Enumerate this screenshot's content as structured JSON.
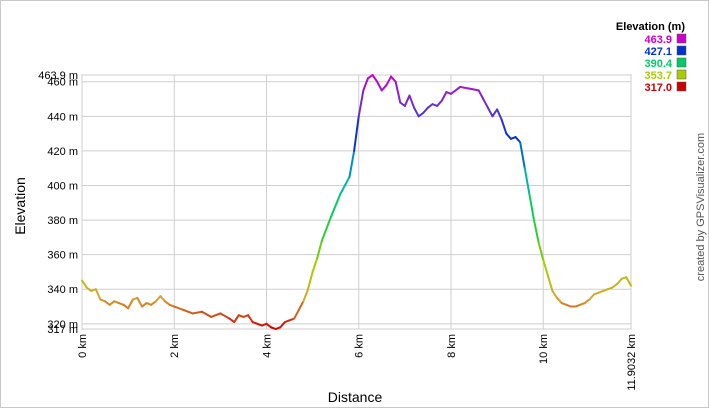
{
  "chart_data": {
    "type": "line",
    "title": "",
    "xlabel": "Distance",
    "ylabel": "Elevation",
    "xlim": [
      0,
      11.9032
    ],
    "ylim": [
      317.0,
      463.9
    ],
    "x_ticks": [
      {
        "value": 0,
        "label": "0 km"
      },
      {
        "value": 2,
        "label": "2 km"
      },
      {
        "value": 4,
        "label": "4 km"
      },
      {
        "value": 6,
        "label": "6 km"
      },
      {
        "value": 8,
        "label": "8 km"
      },
      {
        "value": 10,
        "label": "10 km"
      },
      {
        "value": 11.9032,
        "label": "11.9032 km"
      }
    ],
    "y_ticks": [
      {
        "value": 317.0,
        "label": "317 m"
      },
      {
        "value": 320,
        "label": "320 m"
      },
      {
        "value": 340,
        "label": "340 m"
      },
      {
        "value": 360,
        "label": "360 m"
      },
      {
        "value": 380,
        "label": "380 m"
      },
      {
        "value": 400,
        "label": "400 m"
      },
      {
        "value": 420,
        "label": "420 m"
      },
      {
        "value": 440,
        "label": "440 m"
      },
      {
        "value": 460,
        "label": "460 m"
      },
      {
        "value": 463.9,
        "label": "463.9 m"
      }
    ],
    "grid": true,
    "legend": {
      "title": "Elevation (m)",
      "placement": "top-right",
      "entries": [
        {
          "label": "463.9",
          "color": "#cc00cc"
        },
        {
          "label": "427.1",
          "color": "#0033cc"
        },
        {
          "label": "390.4",
          "color": "#00cc66"
        },
        {
          "label": "353.7",
          "color": "#aacc00"
        },
        {
          "label": "317.0",
          "color": "#cc0000"
        }
      ]
    },
    "color_scale": [
      {
        "value": 317.0,
        "color": "#cc0000"
      },
      {
        "value": 335.0,
        "color": "#d7a52f"
      },
      {
        "value": 353.7,
        "color": "#aacc00"
      },
      {
        "value": 372.0,
        "color": "#33cc33"
      },
      {
        "value": 390.4,
        "color": "#00cc66"
      },
      {
        "value": 408.0,
        "color": "#00aacc"
      },
      {
        "value": 427.1,
        "color": "#0033cc"
      },
      {
        "value": 445.0,
        "color": "#6633cc"
      },
      {
        "value": 463.9,
        "color": "#cc00cc"
      }
    ],
    "series": [
      {
        "x": [
          0,
          0.1,
          0.2,
          0.3,
          0.4,
          0.5,
          0.6,
          0.7,
          0.8,
          0.9,
          1.0,
          1.1,
          1.2,
          1.3,
          1.4,
          1.5,
          1.6,
          1.7,
          1.8,
          1.9,
          2.0,
          2.2,
          2.4,
          2.6,
          2.8,
          3.0,
          3.2,
          3.3,
          3.4,
          3.5,
          3.6,
          3.7,
          3.8,
          3.9,
          4.0,
          4.1,
          4.2,
          4.3,
          4.4,
          4.5,
          4.6,
          4.8,
          4.9,
          5.0,
          5.1,
          5.2,
          5.4,
          5.6,
          5.8,
          5.9,
          6.0,
          6.1,
          6.2,
          6.3,
          6.4,
          6.5,
          6.6,
          6.7,
          6.8,
          6.9,
          7.0,
          7.1,
          7.2,
          7.3,
          7.4,
          7.5,
          7.6,
          7.7,
          7.8,
          7.9,
          8.0,
          8.2,
          8.4,
          8.6,
          8.7,
          8.8,
          8.9,
          9.0,
          9.1,
          9.2,
          9.3,
          9.4,
          9.5,
          9.6,
          9.7,
          9.8,
          9.9,
          10.0,
          10.1,
          10.2,
          10.3,
          10.4,
          10.5,
          10.6,
          10.7,
          10.8,
          10.9,
          11.0,
          11.1,
          11.2,
          11.3,
          11.4,
          11.5,
          11.6,
          11.7,
          11.8,
          11.9032
        ],
        "y": [
          345,
          341,
          339,
          340,
          334,
          333,
          331,
          333,
          332,
          331,
          329,
          334,
          335,
          330,
          332,
          331,
          333,
          336,
          333,
          331,
          330,
          328,
          326,
          327,
          324,
          326,
          323,
          321,
          325,
          324,
          325,
          321,
          320,
          319,
          320,
          318,
          317,
          318,
          321,
          322,
          323,
          333,
          340,
          350,
          358,
          368,
          382,
          395,
          405,
          420,
          440,
          455,
          462,
          463.9,
          460,
          455,
          458,
          463,
          460,
          448,
          446,
          452,
          445,
          440,
          442,
          445,
          447,
          446,
          449,
          454,
          453,
          457,
          456,
          455,
          450,
          445,
          440,
          444,
          438,
          430,
          427,
          428,
          425,
          410,
          395,
          380,
          367,
          357,
          348,
          339,
          335,
          332,
          331,
          330,
          330,
          331,
          332,
          334,
          337,
          338,
          339,
          340,
          341,
          343,
          346,
          347,
          342
        ]
      }
    ]
  },
  "credit": "created by GPSVisualizer.com"
}
